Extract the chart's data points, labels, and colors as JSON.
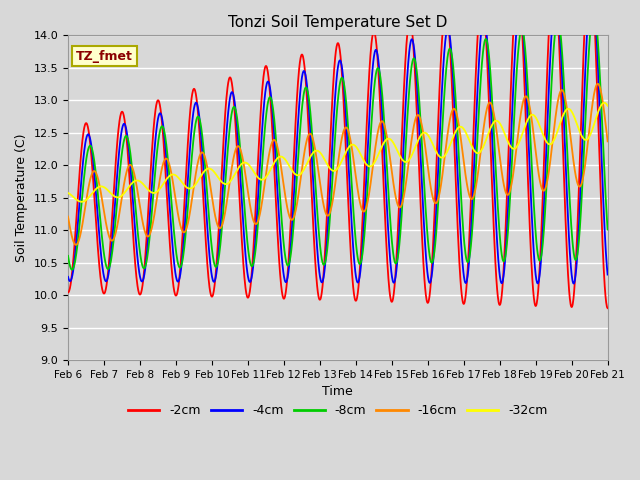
{
  "title": "Tonzi Soil Temperature Set D",
  "xlabel": "Time",
  "ylabel": "Soil Temperature (C)",
  "ylim": [
    9.0,
    14.0
  ],
  "yticks": [
    9.0,
    9.5,
    10.0,
    10.5,
    11.0,
    11.5,
    12.0,
    12.5,
    13.0,
    13.5,
    14.0
  ],
  "xtick_labels": [
    "Feb 6",
    "Feb 7",
    "Feb 8",
    "Feb 9",
    "Feb 10",
    "Feb 11",
    "Feb 12",
    "Feb 13",
    "Feb 14",
    "Feb 15",
    "Feb 16",
    "Feb 17",
    "Feb 18",
    "Feb 19",
    "Feb 20",
    "Feb 21"
  ],
  "series_colors": [
    "#ff0000",
    "#0000ff",
    "#00cc00",
    "#ff8800",
    "#ffff00"
  ],
  "series_labels": [
    "-2cm",
    "-4cm",
    "-8cm",
    "-16cm",
    "-32cm"
  ],
  "legend_annotation": "TZ_fmet",
  "background_color": "#d8d8d8",
  "plot_bg_color": "#d8d8d8",
  "grid_color": "#ffffff",
  "n_points": 1500,
  "days": 15
}
